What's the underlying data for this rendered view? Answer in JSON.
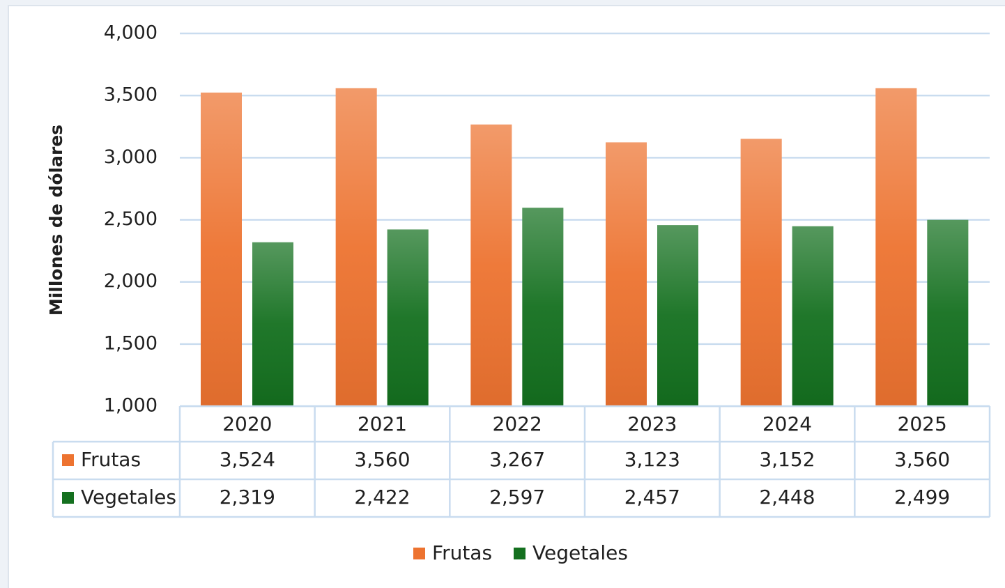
{
  "chart_data": {
    "type": "bar",
    "y_axis_label": "Millones de dólares",
    "categories": [
      "2020",
      "2021",
      "2022",
      "2023",
      "2024",
      "2025"
    ],
    "series": [
      {
        "name": "Frutas",
        "color": "#ed7330",
        "values": [
          3524,
          3560,
          3267,
          3123,
          3152,
          3560
        ],
        "value_labels": [
          "3,524",
          "3,560",
          "3,267",
          "3,123",
          "3,152",
          "3,560"
        ]
      },
      {
        "name": "Vegetales",
        "color": "#14701f",
        "values": [
          2319,
          2422,
          2597,
          2457,
          2448,
          2499
        ],
        "value_labels": [
          "2,319",
          "2,422",
          "2,597",
          "2,457",
          "2,448",
          "2,499"
        ]
      }
    ],
    "ylim": [
      1000,
      4000
    ],
    "yticks": [
      {
        "value": 1000,
        "label": "1,000"
      },
      {
        "value": 1500,
        "label": "1,500"
      },
      {
        "value": 2000,
        "label": "2,000"
      },
      {
        "value": 2500,
        "label": "2,500"
      },
      {
        "value": 3000,
        "label": "3,000"
      },
      {
        "value": 3500,
        "label": "3,500"
      },
      {
        "value": 4000,
        "label": "4,000"
      }
    ],
    "grid": true,
    "legend": "bottom"
  }
}
